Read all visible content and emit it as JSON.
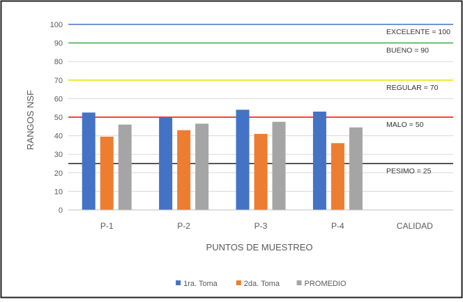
{
  "chart_data": {
    "type": "bar",
    "xlabel": "PUNTOS DE MUESTREO",
    "ylabel": "RANGOS NSF",
    "categories": [
      "P-1",
      "P-2",
      "P-3",
      "P-4",
      "CALIDAD"
    ],
    "ylim": [
      0,
      100
    ],
    "yticks": [
      0,
      10,
      20,
      30,
      40,
      50,
      60,
      70,
      80,
      90,
      100
    ],
    "grid": true,
    "legend_position": "bottom",
    "series": [
      {
        "name": "1ra. Toma",
        "color": "#4472c4",
        "values": [
          52.5,
          50,
          54,
          53,
          null
        ]
      },
      {
        "name": "2da. Toma",
        "color": "#ed7d31",
        "values": [
          39.5,
          43,
          41,
          36,
          null
        ]
      },
      {
        "name": "PROMEDIO",
        "color": "#a5a5a5",
        "values": [
          46,
          46.5,
          47.5,
          44.5,
          null
        ]
      }
    ],
    "reference_lines": [
      {
        "label": "EXCELENTE = 100",
        "value": 100,
        "color": "#4472c4"
      },
      {
        "label": "BUENO = 90",
        "value": 90,
        "color": "#4caf50"
      },
      {
        "label": "REGULAR = 70",
        "value": 70,
        "color": "#e6e600"
      },
      {
        "label": "MALO = 50",
        "value": 50,
        "color": "#ff0000"
      },
      {
        "label": "PESIMO = 25",
        "value": 25,
        "color": "#1a1a1a"
      }
    ]
  }
}
